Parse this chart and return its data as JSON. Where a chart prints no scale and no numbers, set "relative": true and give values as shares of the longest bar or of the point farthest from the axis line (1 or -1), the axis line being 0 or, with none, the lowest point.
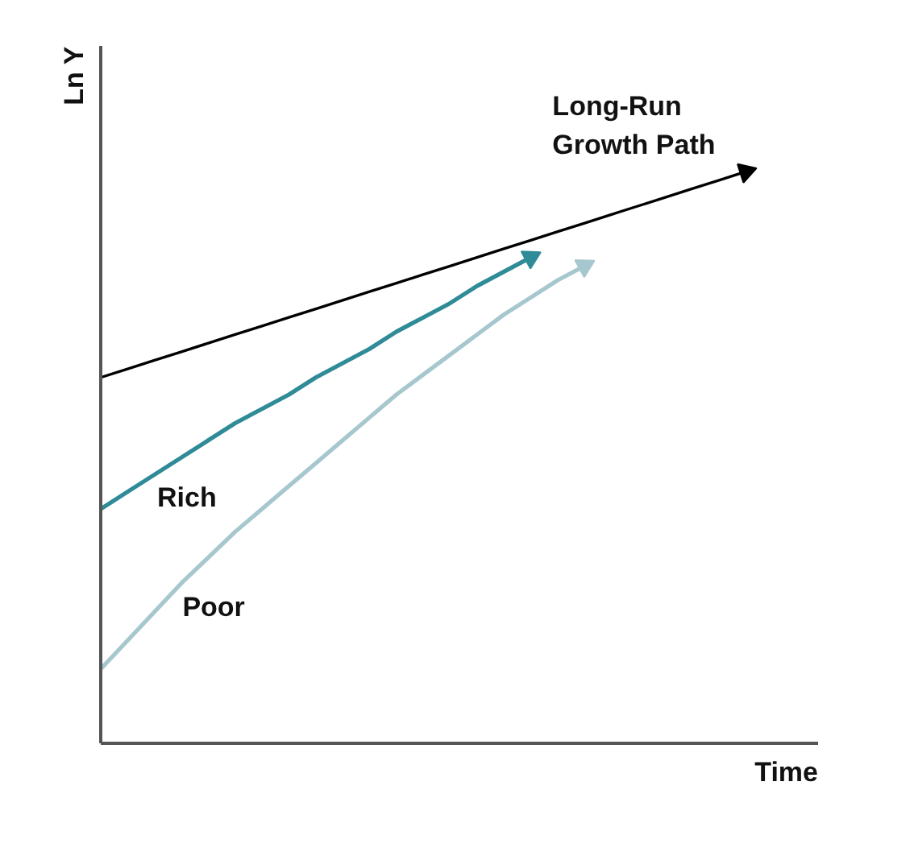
{
  "chart_data": {
    "type": "line",
    "relative": true,
    "xlabel": "Time",
    "ylabel": "Ln Y",
    "line_style": "solid",
    "categories": [
      null,
      null,
      null,
      null,
      null,
      null,
      null,
      null,
      null,
      null,
      null,
      null,
      null,
      null,
      null,
      null,
      null,
      null,
      null,
      null,
      null,
      null,
      null,
      null,
      null
    ],
    "series": [
      {
        "name": "Long-Run Growth Path",
        "color": "#000000",
        "values": [
          0.64,
          0.655,
          0.67,
          0.685,
          0.7,
          0.715,
          0.73,
          0.745,
          0.76,
          0.775,
          0.79,
          0.805,
          0.82,
          0.835,
          0.85,
          0.865,
          0.88,
          0.895,
          0.91,
          0.925,
          0.94,
          0.955,
          0.97,
          0.985,
          1.0
        ]
      },
      {
        "name": "Rich",
        "color": "#2f8b97",
        "values": [
          0.41,
          0.44,
          0.47,
          0.5,
          0.53,
          0.56,
          0.585,
          0.61,
          0.64,
          0.665,
          0.69,
          0.72,
          0.745,
          0.77,
          0.8,
          0.825,
          0.85,
          null,
          null,
          null,
          null,
          null,
          null,
          null,
          null
        ]
      },
      {
        "name": "Poor",
        "color": "#a7c7cf",
        "values": [
          0.13,
          0.18,
          0.23,
          0.28,
          0.325,
          0.37,
          0.41,
          0.45,
          0.49,
          0.53,
          0.57,
          0.61,
          0.645,
          0.68,
          0.715,
          0.75,
          0.78,
          0.81,
          0.835,
          null,
          null,
          null,
          null,
          null,
          null
        ]
      }
    ]
  }
}
